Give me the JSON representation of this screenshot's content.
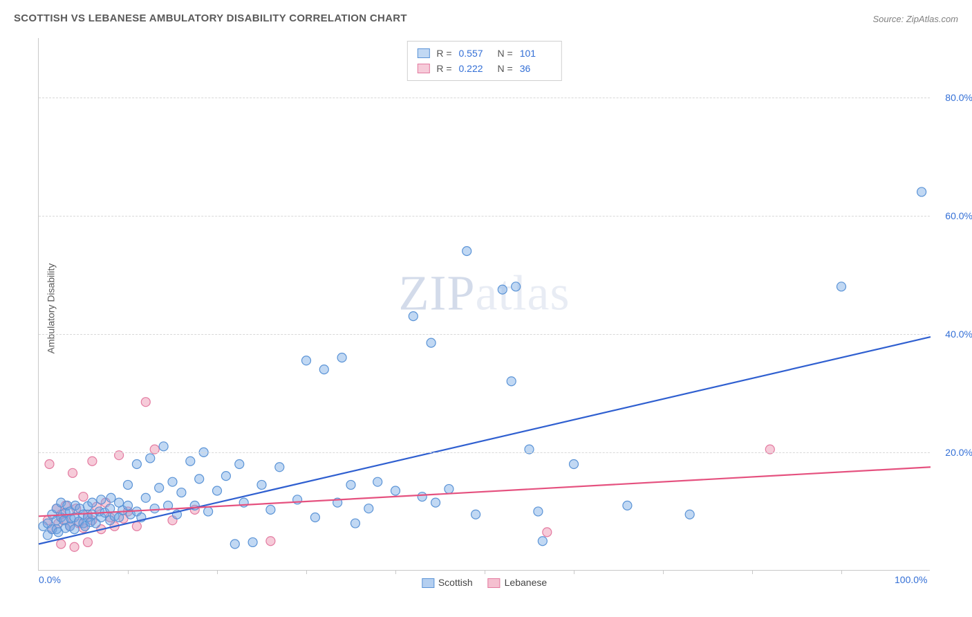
{
  "title": "SCOTTISH VS LEBANESE AMBULATORY DISABILITY CORRELATION CHART",
  "source": "Source: ZipAtlas.com",
  "ylabel": "Ambulatory Disability",
  "watermark_bold": "ZIP",
  "watermark_light": "atlas",
  "chart": {
    "type": "scatter",
    "xlim": [
      0,
      100
    ],
    "ylim": [
      0,
      90
    ],
    "x_tick_labels": [
      {
        "x": 0,
        "label": "0.0%"
      },
      {
        "x": 100,
        "label": "100.0%"
      }
    ],
    "x_minor_ticks": [
      10,
      20,
      30,
      40,
      50,
      60,
      70,
      80,
      90
    ],
    "y_gridlines": [
      20,
      40,
      60,
      80
    ],
    "y_tick_labels": [
      {
        "y": 20,
        "label": "20.0%"
      },
      {
        "y": 40,
        "label": "40.0%"
      },
      {
        "y": 60,
        "label": "60.0%"
      },
      {
        "y": 80,
        "label": "80.0%"
      }
    ],
    "background_color": "#ffffff",
    "grid_color": "#d8d8d8",
    "axis_color": "#c8c8c8",
    "label_color": "#336fd6",
    "marker_radius": 6.5,
    "marker_stroke_width": 1.2,
    "line_width": 2.2,
    "series": [
      {
        "name": "Scottish",
        "color_fill": "rgba(118,168,228,0.45)",
        "color_stroke": "#5a93d6",
        "line_color": "#2f5fd0",
        "r_value": "0.557",
        "n_value": "101",
        "regression": {
          "x1": 0,
          "y1": 4.5,
          "x2": 100,
          "y2": 39.5
        },
        "points": [
          [
            0.5,
            7.5
          ],
          [
            1,
            8
          ],
          [
            1,
            6
          ],
          [
            1.5,
            9.5
          ],
          [
            1.5,
            7
          ],
          [
            2,
            8.5
          ],
          [
            2,
            10.5
          ],
          [
            2,
            7
          ],
          [
            2.2,
            6.5
          ],
          [
            2.5,
            9
          ],
          [
            2.5,
            11.5
          ],
          [
            2.8,
            8.5
          ],
          [
            3,
            7.2
          ],
          [
            3,
            9.8
          ],
          [
            3.2,
            11
          ],
          [
            3.5,
            7.5
          ],
          [
            3.5,
            10
          ],
          [
            3.6,
            8.8
          ],
          [
            4,
            9
          ],
          [
            4,
            7
          ],
          [
            4.1,
            11
          ],
          [
            4.5,
            8.3
          ],
          [
            4.6,
            10.5
          ],
          [
            5,
            9.5
          ],
          [
            5,
            8
          ],
          [
            5.2,
            7.5
          ],
          [
            5.5,
            10.9
          ],
          [
            5.5,
            9
          ],
          [
            5.8,
            8.2
          ],
          [
            6,
            11.5
          ],
          [
            6,
            9.5
          ],
          [
            6.4,
            8
          ],
          [
            6.8,
            10
          ],
          [
            7,
            9
          ],
          [
            7,
            12
          ],
          [
            7.4,
            9.8
          ],
          [
            8,
            10.5
          ],
          [
            8,
            8.5
          ],
          [
            8.1,
            12.3
          ],
          [
            8.5,
            9.2
          ],
          [
            9,
            11.5
          ],
          [
            9,
            9
          ],
          [
            9.4,
            10.2
          ],
          [
            10,
            11
          ],
          [
            10,
            14.5
          ],
          [
            10.3,
            9.5
          ],
          [
            11,
            18
          ],
          [
            11,
            10
          ],
          [
            11.5,
            9
          ],
          [
            12,
            12.3
          ],
          [
            12.5,
            19
          ],
          [
            13,
            10.5
          ],
          [
            13.5,
            14
          ],
          [
            14,
            21
          ],
          [
            14.5,
            11
          ],
          [
            15,
            15
          ],
          [
            15.5,
            9.5
          ],
          [
            16,
            13.2
          ],
          [
            17,
            18.5
          ],
          [
            17.5,
            11
          ],
          [
            18,
            15.5
          ],
          [
            18.5,
            20
          ],
          [
            19,
            10
          ],
          [
            20,
            13.5
          ],
          [
            21,
            16
          ],
          [
            22,
            4.5
          ],
          [
            22.5,
            18
          ],
          [
            23,
            11.5
          ],
          [
            24,
            4.8
          ],
          [
            25,
            14.5
          ],
          [
            26,
            10.3
          ],
          [
            27,
            17.5
          ],
          [
            29,
            12
          ],
          [
            30,
            35.5
          ],
          [
            31,
            9
          ],
          [
            32,
            34
          ],
          [
            33.5,
            11.5
          ],
          [
            34,
            36
          ],
          [
            35,
            14.5
          ],
          [
            35.5,
            8
          ],
          [
            37,
            10.5
          ],
          [
            38,
            15
          ],
          [
            40,
            13.5
          ],
          [
            42,
            43
          ],
          [
            43,
            12.5
          ],
          [
            44,
            38.5
          ],
          [
            44.5,
            11.5
          ],
          [
            46,
            13.8
          ],
          [
            48,
            54
          ],
          [
            49,
            9.5
          ],
          [
            52,
            47.5
          ],
          [
            53,
            32
          ],
          [
            53.5,
            48
          ],
          [
            55,
            20.5
          ],
          [
            56,
            10
          ],
          [
            56.5,
            5
          ],
          [
            60,
            18
          ],
          [
            66,
            11
          ],
          [
            73,
            9.5
          ],
          [
            90,
            48
          ],
          [
            99,
            64
          ]
        ]
      },
      {
        "name": "Lebanese",
        "color_fill": "rgba(236,140,170,0.45)",
        "color_stroke": "#e37aa0",
        "line_color": "#e5517f",
        "r_value": "0.222",
        "n_value": "36",
        "regression": {
          "x1": 0,
          "y1": 9.2,
          "x2": 100,
          "y2": 17.5
        },
        "points": [
          [
            1,
            8.5
          ],
          [
            1.2,
            18
          ],
          [
            1.5,
            7
          ],
          [
            2,
            10.5
          ],
          [
            2.2,
            8
          ],
          [
            2.5,
            9.5
          ],
          [
            2.5,
            4.5
          ],
          [
            3,
            11
          ],
          [
            3,
            8.5
          ],
          [
            3.5,
            7.5
          ],
          [
            3.8,
            16.5
          ],
          [
            4,
            4
          ],
          [
            4.2,
            10.5
          ],
          [
            4.5,
            8
          ],
          [
            5,
            12.5
          ],
          [
            5,
            7.2
          ],
          [
            5.5,
            9.5
          ],
          [
            5.5,
            4.8
          ],
          [
            6,
            18.5
          ],
          [
            6,
            8.5
          ],
          [
            6.5,
            10.8
          ],
          [
            7,
            7
          ],
          [
            7.5,
            11.5
          ],
          [
            8,
            9
          ],
          [
            8.5,
            7.5
          ],
          [
            9,
            19.5
          ],
          [
            9.5,
            8.8
          ],
          [
            10,
            10
          ],
          [
            11,
            7.5
          ],
          [
            12,
            28.5
          ],
          [
            13,
            20.5
          ],
          [
            15,
            8.5
          ],
          [
            17.5,
            10.3
          ],
          [
            26,
            5
          ],
          [
            57,
            6.5
          ],
          [
            82,
            20.5
          ]
        ]
      }
    ]
  },
  "legend_bottom": [
    {
      "label": "Scottish",
      "fill": "rgba(118,168,228,0.55)",
      "stroke": "#5a93d6"
    },
    {
      "label": "Lebanese",
      "fill": "rgba(236,140,170,0.55)",
      "stroke": "#e37aa0"
    }
  ]
}
